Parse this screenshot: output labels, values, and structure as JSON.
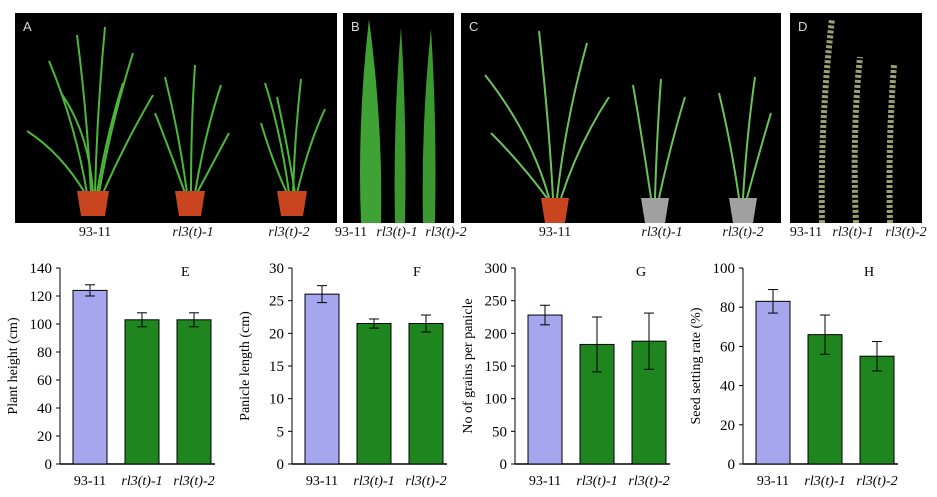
{
  "photos": {
    "A": {
      "letter": "A",
      "labels": [
        "93-11",
        "rl3(t)-1",
        "rl3(t)-2"
      ]
    },
    "B": {
      "letter": "B",
      "labels": [
        "93-11",
        "rl3(t)-1",
        "rl3(t)-2"
      ]
    },
    "C": {
      "letter": "C",
      "labels": [
        "93-11",
        "rl3(t)-1",
        "rl3(t)-2"
      ]
    },
    "D": {
      "letter": "D",
      "labels": [
        "93-11",
        "rl3(t)-1",
        "rl3(t)-2"
      ]
    }
  },
  "colors": {
    "wildtype": "#a6a6ee",
    "mutant": "#1f861f",
    "photo_bg": "#000000",
    "leaf": "#4cb83a",
    "pot": "#c8451f"
  },
  "chart_data": [
    {
      "type": "bar",
      "panel": "E",
      "ylabel": "Plant height (cm)",
      "categories": [
        "93-11",
        "rl3(t)-1",
        "rl3(t)-2"
      ],
      "values": [
        124,
        103,
        103
      ],
      "errors": [
        4,
        5,
        5
      ],
      "ylim": [
        0,
        140
      ],
      "yticks": [
        0,
        20,
        40,
        60,
        80,
        100,
        120,
        140
      ]
    },
    {
      "type": "bar",
      "panel": "F",
      "ylabel": "Panicle length (cm)",
      "categories": [
        "93-11",
        "rl3(t)-1",
        "rl3(t)-2"
      ],
      "values": [
        26,
        21.5,
        21.5
      ],
      "errors": [
        1.3,
        0.7,
        1.3
      ],
      "ylim": [
        0,
        30
      ],
      "yticks": [
        0,
        5,
        10,
        15,
        20,
        25,
        30
      ]
    },
    {
      "type": "bar",
      "panel": "G",
      "ylabel": "No of grains per panicle",
      "categories": [
        "93-11",
        "rl3(t)-1",
        "rl3(t)-2"
      ],
      "values": [
        228,
        183,
        188
      ],
      "errors": [
        15,
        42,
        43
      ],
      "ylim": [
        0,
        300
      ],
      "yticks": [
        0,
        50,
        100,
        150,
        200,
        250,
        300
      ]
    },
    {
      "type": "bar",
      "panel": "H",
      "ylabel": "Seed setting rate (%)",
      "categories": [
        "93-11",
        "rl3(t)-1",
        "rl3(t)-2"
      ],
      "values": [
        83,
        66,
        55
      ],
      "errors": [
        6,
        10,
        7.5
      ],
      "ylim": [
        0,
        100
      ],
      "yticks": [
        0,
        20,
        40,
        60,
        80,
        100
      ]
    }
  ]
}
